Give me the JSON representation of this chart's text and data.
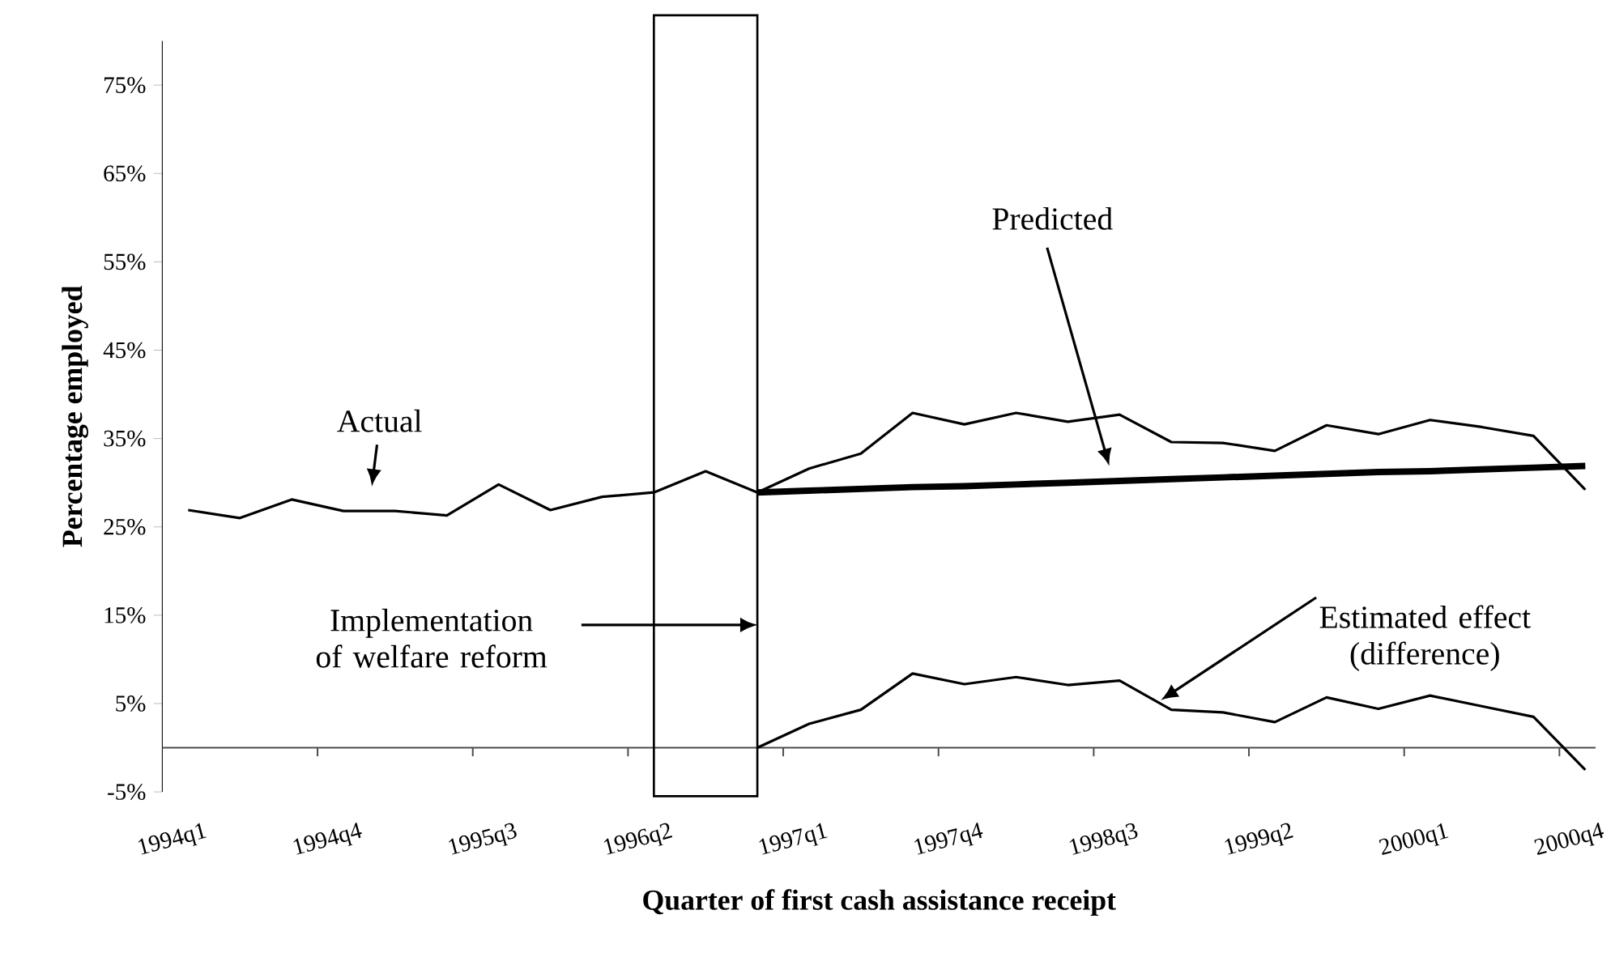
{
  "chart_data": {
    "type": "line",
    "xlabel": "Quarter of first cash assistance receipt",
    "ylabel": "Percentage employed",
    "categories": [
      "1994q1",
      null,
      null,
      "1994q4",
      null,
      null,
      "1995q3",
      null,
      null,
      "1996q2",
      null,
      null,
      "1997q1",
      null,
      null,
      "1997q4",
      null,
      null,
      "1998q3",
      null,
      null,
      "1999q2",
      null,
      null,
      "2000q1",
      null,
      null,
      "2000q4"
    ],
    "series": [
      {
        "name": "Actual",
        "color": "#000000",
        "values": [
          26.9,
          26.0,
          28.1,
          26.8,
          26.8,
          26.3,
          29.8,
          26.9,
          28.4,
          28.9,
          31.3,
          28.9,
          31.6,
          33.3,
          37.9,
          36.6,
          37.9,
          36.9,
          37.7,
          34.6,
          34.5,
          33.6,
          36.5,
          35.5,
          37.1,
          36.3,
          35.3,
          29.2
        ]
      },
      {
        "color": "#000000",
        "values": [
          null,
          null,
          null,
          null,
          null,
          null,
          null,
          null,
          null,
          null,
          null,
          28.9,
          29.1,
          29.3,
          29.5,
          29.6,
          29.8,
          30.0,
          30.2,
          30.4,
          30.6,
          30.8,
          31.0,
          31.2,
          31.3,
          31.5,
          31.7,
          31.9
        ]
      },
      {
        "name": "Estimated effect (difference)",
        "color": "#000000",
        "values": [
          null,
          null,
          null,
          null,
          null,
          null,
          null,
          null,
          null,
          null,
          null,
          0,
          2.7,
          4.3,
          8.4,
          7.2,
          8.0,
          7.1,
          7.6,
          4.3,
          4.0,
          2.9,
          5.7,
          4.4,
          5.9,
          4.7,
          3.5,
          -2.5
        ]
      }
    ],
    "ylim": [
      -5,
      80
    ],
    "yticks": [
      {
        "value": -5,
        "label": "-5%"
      },
      {
        "value": 5,
        "label": "5%"
      },
      {
        "value": 15,
        "label": "15%"
      },
      {
        "value": 25,
        "label": "25%"
      },
      {
        "value": 35,
        "label": "35%"
      },
      {
        "value": 45,
        "label": "45%"
      },
      {
        "value": 55,
        "label": "55%"
      },
      {
        "value": 65,
        "label": "65%"
      },
      {
        "value": 75,
        "label": "75%"
      }
    ],
    "annotations": [
      "Implementation of welfare reform",
      "Predicted"
    ],
    "legend": false,
    "grid": false
  }
}
